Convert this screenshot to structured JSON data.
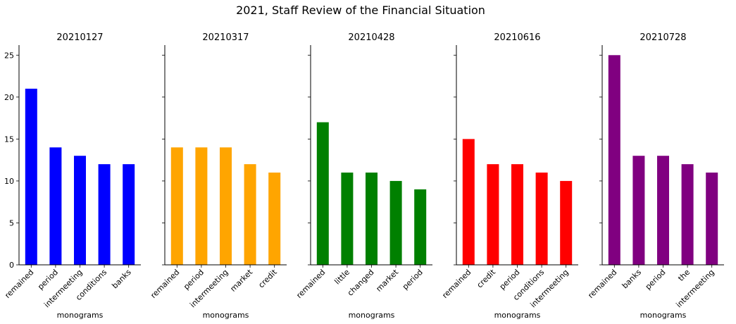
{
  "figure": {
    "suptitle": "2021, Staff Review of the Financial Situation"
  },
  "chart_data": [
    {
      "type": "bar",
      "title": "20210127",
      "xlabel": "monograms",
      "ylabel": "",
      "categories": [
        "remained",
        "period",
        "intermeeting",
        "conditions",
        "banks"
      ],
      "values": [
        21,
        14,
        13,
        12,
        12
      ],
      "color": "#0000ff",
      "ylim": [
        0,
        26.2
      ],
      "yticks": [
        0,
        5,
        10,
        15,
        20,
        25
      ],
      "grid": false
    },
    {
      "type": "bar",
      "title": "20210317",
      "xlabel": "monograms",
      "ylabel": "",
      "categories": [
        "remained",
        "period",
        "intermeeting",
        "market",
        "credit"
      ],
      "values": [
        14,
        14,
        14,
        12,
        11
      ],
      "color": "#ffa500",
      "ylim": [
        0,
        26.2
      ],
      "yticks": [
        0,
        5,
        10,
        15,
        20,
        25
      ],
      "grid": false
    },
    {
      "type": "bar",
      "title": "20210428",
      "xlabel": "monograms",
      "ylabel": "",
      "categories": [
        "remained",
        "little",
        "changed",
        "market",
        "period"
      ],
      "values": [
        17,
        11,
        11,
        10,
        9
      ],
      "color": "#008000",
      "ylim": [
        0,
        26.2
      ],
      "yticks": [
        0,
        5,
        10,
        15,
        20,
        25
      ],
      "grid": false
    },
    {
      "type": "bar",
      "title": "20210616",
      "xlabel": "monograms",
      "ylabel": "",
      "categories": [
        "remained",
        "credit",
        "period",
        "conditions",
        "intermeeting"
      ],
      "values": [
        15,
        12,
        12,
        11,
        10
      ],
      "color": "#ff0000",
      "ylim": [
        0,
        26.2
      ],
      "yticks": [
        0,
        5,
        10,
        15,
        20,
        25
      ],
      "grid": false
    },
    {
      "type": "bar",
      "title": "20210728",
      "xlabel": "monograms",
      "ylabel": "",
      "categories": [
        "remained",
        "banks",
        "period",
        "the",
        "intermeeting"
      ],
      "values": [
        25,
        13,
        13,
        12,
        11
      ],
      "color": "#800080",
      "ylim": [
        0,
        26.2
      ],
      "yticks": [
        0,
        5,
        10,
        15,
        20,
        25
      ],
      "grid": false
    }
  ]
}
